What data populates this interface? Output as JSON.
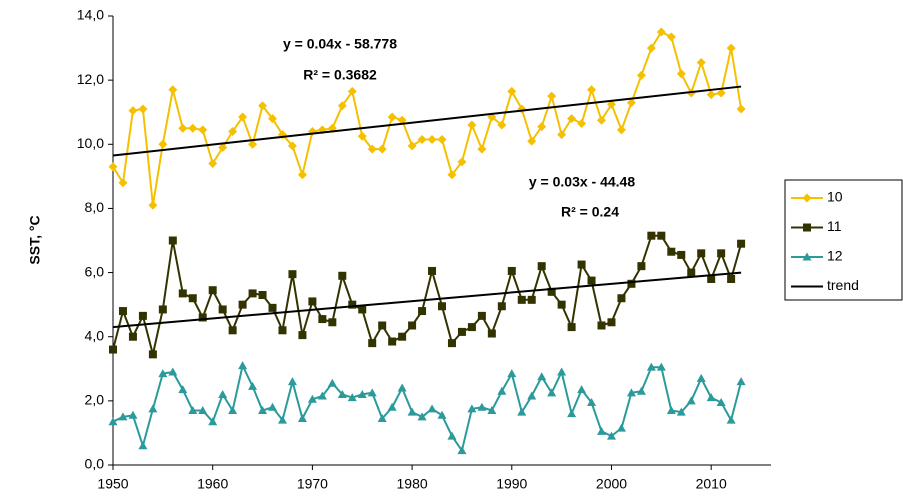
{
  "chart_data": {
    "type": "line",
    "y_label": "SST, °C",
    "x": [
      1950,
      1951,
      1952,
      1953,
      1954,
      1955,
      1956,
      1957,
      1958,
      1959,
      1960,
      1961,
      1962,
      1963,
      1964,
      1965,
      1966,
      1967,
      1968,
      1969,
      1970,
      1971,
      1972,
      1973,
      1974,
      1975,
      1976,
      1977,
      1978,
      1979,
      1980,
      1981,
      1982,
      1983,
      1984,
      1985,
      1986,
      1987,
      1988,
      1989,
      1990,
      1991,
      1992,
      1993,
      1994,
      1995,
      1996,
      1997,
      1998,
      1999,
      2000,
      2001,
      2002,
      2003,
      2004,
      2005,
      2006,
      2007,
      2008,
      2009,
      2010,
      2011,
      2012,
      2013
    ],
    "series": [
      {
        "name": "10",
        "color": "#f5c000",
        "marker": "diamond",
        "values": [
          9.3,
          8.8,
          11.05,
          11.1,
          8.1,
          10.0,
          11.7,
          10.5,
          10.5,
          10.45,
          9.4,
          9.9,
          10.4,
          10.85,
          10.0,
          11.2,
          10.8,
          10.3,
          9.95,
          9.05,
          10.4,
          10.45,
          10.5,
          11.2,
          11.65,
          10.25,
          9.85,
          9.85,
          10.85,
          10.75,
          9.95,
          10.15,
          10.15,
          10.15,
          9.05,
          9.45,
          10.6,
          9.85,
          10.85,
          10.6,
          11.65,
          11.1,
          10.1,
          10.55,
          11.5,
          10.3,
          10.8,
          10.65,
          11.7,
          10.75,
          11.25,
          10.45,
          11.3,
          12.15,
          13.0,
          13.5,
          13.35,
          12.2,
          11.6,
          12.55,
          11.55,
          11.6,
          13.0,
          11.1
        ]
      },
      {
        "name": "11",
        "color": "#333300",
        "marker": "square",
        "values": [
          3.6,
          4.8,
          4.0,
          4.65,
          3.45,
          4.85,
          7.0,
          5.35,
          5.2,
          4.6,
          5.45,
          4.85,
          4.2,
          5.0,
          5.35,
          5.3,
          4.9,
          4.2,
          5.95,
          4.05,
          5.1,
          4.55,
          4.45,
          5.9,
          5.0,
          4.85,
          3.8,
          4.35,
          3.85,
          4.0,
          4.35,
          4.8,
          6.05,
          4.95,
          3.8,
          4.15,
          4.3,
          4.65,
          4.1,
          4.95,
          6.05,
          5.15,
          5.15,
          6.2,
          5.4,
          5.0,
          4.3,
          6.25,
          5.75,
          4.35,
          4.45,
          5.2,
          5.65,
          6.2,
          7.15,
          7.15,
          6.65,
          6.55,
          6.0,
          6.6,
          5.8,
          6.6,
          5.8,
          6.9
        ]
      },
      {
        "name": "12",
        "color": "#2a9a9a",
        "marker": "triangle",
        "values": [
          1.35,
          1.5,
          1.55,
          0.6,
          1.75,
          2.85,
          2.9,
          2.35,
          1.7,
          1.7,
          1.35,
          2.2,
          1.7,
          3.1,
          2.45,
          1.7,
          1.8,
          1.4,
          2.6,
          1.45,
          2.05,
          2.15,
          2.55,
          2.2,
          2.1,
          2.2,
          2.25,
          1.45,
          1.8,
          2.4,
          1.65,
          1.5,
          1.75,
          1.55,
          0.9,
          0.45,
          1.75,
          1.8,
          1.7,
          2.3,
          2.85,
          1.65,
          2.15,
          2.75,
          2.25,
          2.9,
          1.6,
          2.35,
          1.95,
          1.05,
          0.9,
          1.15,
          2.25,
          2.3,
          3.05,
          3.05,
          1.7,
          1.65,
          2.0,
          2.7,
          2.1,
          1.95,
          1.4,
          2.6
        ]
      }
    ],
    "trend": {
      "name": "trend",
      "color": "#000000",
      "lines": [
        {
          "x": [
            1950,
            2013
          ],
          "values": [
            9.65,
            11.8
          ],
          "equation": "y = 0.04x - 58.778",
          "r2": "R² = 0.3682"
        },
        {
          "x": [
            1950,
            2013
          ],
          "values": [
            4.3,
            6.0
          ],
          "equation": "y = 0.03x - 44.48",
          "r2": "R² = 0.24"
        }
      ]
    },
    "xlim": [
      1950,
      2016
    ],
    "xticks": [
      1950,
      1960,
      1970,
      1980,
      1990,
      2000,
      2010
    ],
    "ylim": [
      0,
      14
    ],
    "yticks": [
      {
        "value": 0,
        "label": "0,0"
      },
      {
        "value": 2,
        "label": "2,0"
      },
      {
        "value": 4,
        "label": "4,0"
      },
      {
        "value": 6,
        "label": "6,0"
      },
      {
        "value": 8,
        "label": "8,0"
      },
      {
        "value": 10,
        "label": "10,0"
      },
      {
        "value": 12,
        "label": "12,0"
      },
      {
        "value": 14,
        "label": "14,0"
      }
    ],
    "grid": false,
    "legend": "right"
  }
}
